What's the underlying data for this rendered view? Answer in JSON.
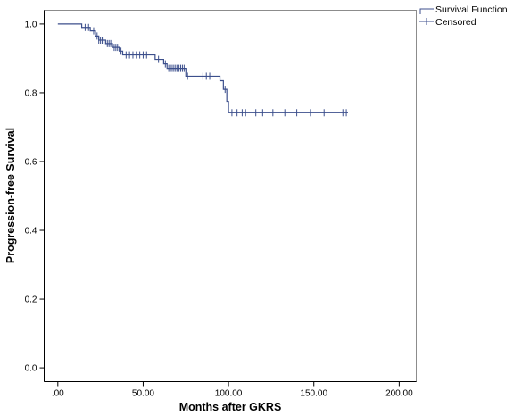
{
  "chart_data": {
    "type": "line",
    "xlabel": "Months after GKRS",
    "ylabel": "Progression-free Survival",
    "xlim": [
      -8,
      210
    ],
    "ylim": [
      -0.04,
      1.04
    ],
    "x_ticks": [
      0,
      50,
      100,
      150,
      200
    ],
    "x_tick_labels": [
      ".00",
      "50.00",
      "100.00",
      "150.00",
      "200.00"
    ],
    "y_ticks": [
      0,
      0.2,
      0.4,
      0.6,
      0.8,
      1.0
    ],
    "y_tick_labels": [
      "0.0",
      "0.2",
      "0.4",
      "0.6",
      "0.8",
      "1.0"
    ],
    "grid": false,
    "legend_position": "top-right",
    "colors": {
      "series": "#3c4f8c",
      "axis": "#000000",
      "frame": "#8c8c8c"
    },
    "series": [
      {
        "name": "Survival Function",
        "kind": "step",
        "points": [
          [
            0,
            1.0
          ],
          [
            14,
            0.99
          ],
          [
            19,
            0.98
          ],
          [
            22,
            0.965
          ],
          [
            24,
            0.953
          ],
          [
            28,
            0.943
          ],
          [
            32,
            0.932
          ],
          [
            36,
            0.921
          ],
          [
            38,
            0.91
          ],
          [
            57,
            0.897
          ],
          [
            62,
            0.884
          ],
          [
            64,
            0.871
          ],
          [
            75,
            0.848
          ],
          [
            95,
            0.835
          ],
          [
            97,
            0.81
          ],
          [
            99,
            0.775
          ],
          [
            100,
            0.742
          ],
          [
            170,
            0.742
          ]
        ]
      },
      {
        "name": "Censored",
        "kind": "censor-marks",
        "points": [
          [
            16,
            0.99
          ],
          [
            18,
            0.99
          ],
          [
            21,
            0.98
          ],
          [
            23,
            0.965
          ],
          [
            24,
            0.953
          ],
          [
            25,
            0.953
          ],
          [
            26,
            0.953
          ],
          [
            27,
            0.953
          ],
          [
            29,
            0.943
          ],
          [
            30,
            0.943
          ],
          [
            31,
            0.943
          ],
          [
            33,
            0.932
          ],
          [
            34,
            0.932
          ],
          [
            35,
            0.932
          ],
          [
            37,
            0.921
          ],
          [
            40,
            0.91
          ],
          [
            42,
            0.91
          ],
          [
            44,
            0.91
          ],
          [
            46,
            0.91
          ],
          [
            48,
            0.91
          ],
          [
            50,
            0.91
          ],
          [
            52,
            0.91
          ],
          [
            59,
            0.897
          ],
          [
            61,
            0.897
          ],
          [
            63,
            0.884
          ],
          [
            65,
            0.871
          ],
          [
            66,
            0.871
          ],
          [
            67,
            0.871
          ],
          [
            68,
            0.871
          ],
          [
            69,
            0.871
          ],
          [
            70,
            0.871
          ],
          [
            71,
            0.871
          ],
          [
            72,
            0.871
          ],
          [
            73,
            0.871
          ],
          [
            74,
            0.871
          ],
          [
            76,
            0.848
          ],
          [
            85,
            0.848
          ],
          [
            87,
            0.848
          ],
          [
            89,
            0.848
          ],
          [
            98,
            0.81
          ],
          [
            102,
            0.742
          ],
          [
            105,
            0.742
          ],
          [
            108,
            0.742
          ],
          [
            110,
            0.742
          ],
          [
            116,
            0.742
          ],
          [
            120,
            0.742
          ],
          [
            126,
            0.742
          ],
          [
            133,
            0.742
          ],
          [
            140,
            0.742
          ],
          [
            148,
            0.742
          ],
          [
            156,
            0.742
          ],
          [
            167,
            0.742
          ],
          [
            169,
            0.742
          ]
        ]
      }
    ]
  }
}
